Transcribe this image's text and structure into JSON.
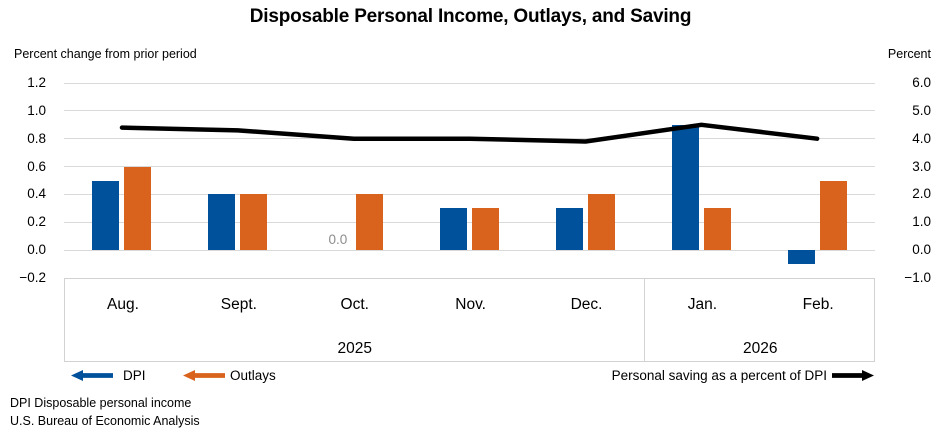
{
  "chart_data": {
    "type": "combo-bar-line",
    "title": "Disposable Personal Income, Outlays, and Saving",
    "categories": [
      "Aug.",
      "Sept.",
      "Oct.",
      "Nov.",
      "Dec.",
      "Jan.",
      "Feb."
    ],
    "year_groups": [
      {
        "label": "2025",
        "start": 0,
        "end": 4
      },
      {
        "label": "2026",
        "start": 5,
        "end": 6
      }
    ],
    "left_axis": {
      "label": "Percent change from prior period",
      "min": -0.2,
      "max": 1.2,
      "tick_labels": [
        "1.2",
        "1.0",
        "0.8",
        "0.6",
        "0.4",
        "0.2",
        "0.0",
        "−0.2"
      ]
    },
    "right_axis": {
      "label": "Percent",
      "min": -1.0,
      "max": 6.0,
      "tick_labels": [
        "6.0",
        "5.0",
        "4.0",
        "3.0",
        "2.0",
        "1.0",
        "0.0",
        "−1.0"
      ]
    },
    "series": [
      {
        "name": "DPI",
        "type": "bar",
        "axis": "left",
        "color": "#00519C",
        "values": [
          0.5,
          0.4,
          0.0,
          0.3,
          0.3,
          0.9,
          -0.1
        ]
      },
      {
        "name": "Outlays",
        "type": "bar",
        "axis": "left",
        "color": "#D9631C",
        "values": [
          0.6,
          0.4,
          0.4,
          0.3,
          0.4,
          0.3,
          0.5
        ]
      },
      {
        "name": "Personal saving as a percent of DPI",
        "type": "line",
        "axis": "right",
        "color": "#000000",
        "values": [
          4.4,
          4.3,
          4.0,
          4.0,
          3.9,
          4.5,
          4.0
        ]
      }
    ],
    "annotations": [
      {
        "text": "0.0",
        "category_index": 2,
        "series": "DPI",
        "color": "#8C8C8C"
      }
    ],
    "grid_color": "#D9D9D9",
    "legend": {
      "note": ""
    }
  },
  "footnotes": [
    "DPI Disposable personal income",
    "U.S. Bureau of Economic Analysis"
  ]
}
